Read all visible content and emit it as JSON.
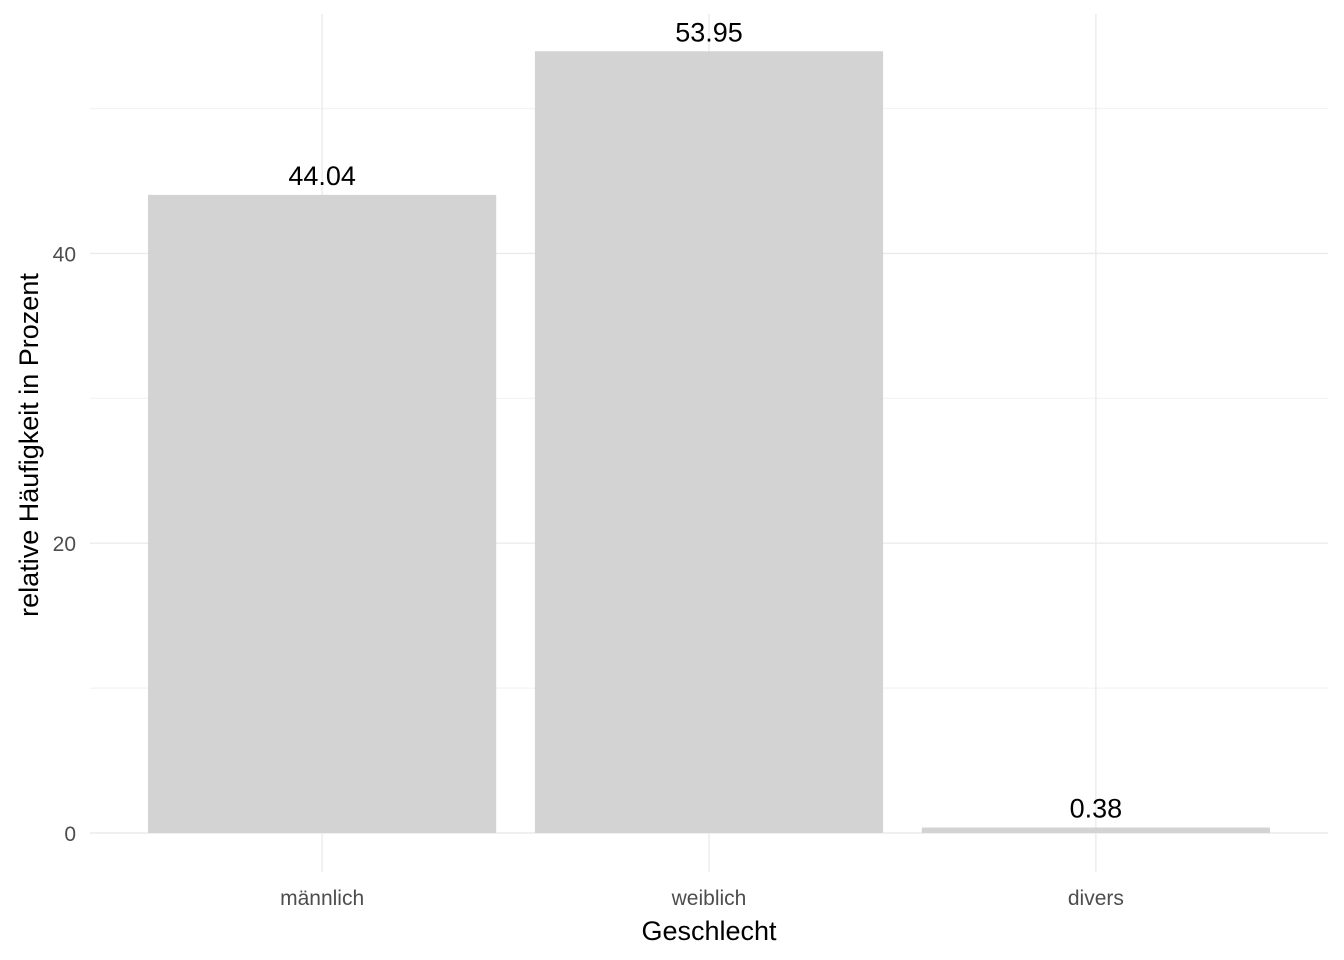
{
  "chart_data": {
    "type": "bar",
    "categories": [
      "männlich",
      "weiblich",
      "divers"
    ],
    "values": [
      44.04,
      53.95,
      0.38
    ],
    "value_labels": [
      "44.04",
      "53.95",
      "0.38"
    ],
    "xlabel": "Geschlecht",
    "ylabel": "relative Häufigkeit in Prozent",
    "ylim": [
      0,
      56.6
    ],
    "yticks": [
      0,
      20,
      40
    ],
    "y_minor_ticks": [
      10,
      30,
      50
    ],
    "grid": true,
    "legend": "none",
    "bar_color": "#d3d3d3"
  }
}
